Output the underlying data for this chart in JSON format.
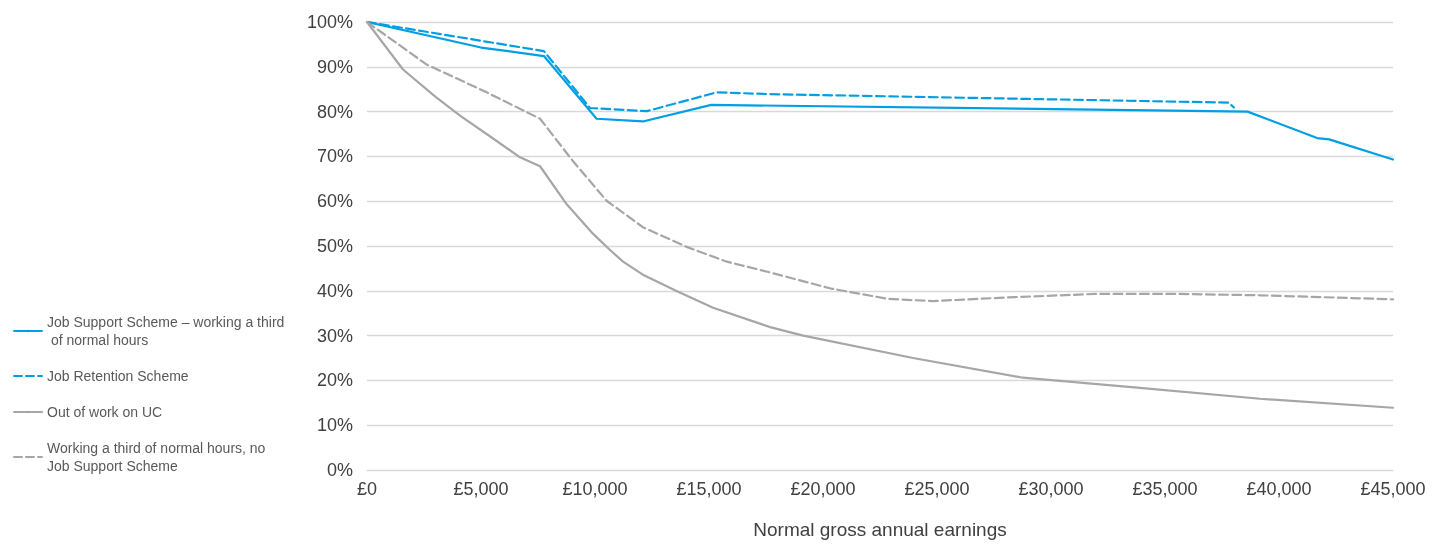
{
  "chart_data": {
    "type": "line",
    "xlabel": "Normal gross annual earnings",
    "xlim": [
      0,
      45000
    ],
    "xticks": [
      {
        "value": 0,
        "label": "£0"
      },
      {
        "value": 5000,
        "label": "£5,000"
      },
      {
        "value": 10000,
        "label": "£10,000"
      },
      {
        "value": 15000,
        "label": "£15,000"
      },
      {
        "value": 20000,
        "label": "£20,000"
      },
      {
        "value": 25000,
        "label": "£25,000"
      },
      {
        "value": 30000,
        "label": "£30,000"
      },
      {
        "value": 35000,
        "label": "£35,000"
      },
      {
        "value": 40000,
        "label": "£40,000"
      },
      {
        "value": 45000,
        "label": "£45,000"
      }
    ],
    "ylim": [
      0,
      100
    ],
    "yticks": [
      {
        "value": 0,
        "label": "0%"
      },
      {
        "value": 10,
        "label": "10%"
      },
      {
        "value": 20,
        "label": "20%"
      },
      {
        "value": 30,
        "label": "30%"
      },
      {
        "value": 40,
        "label": "40%"
      },
      {
        "value": 50,
        "label": "50%"
      },
      {
        "value": 60,
        "label": "60%"
      },
      {
        "value": 70,
        "label": "70%"
      },
      {
        "value": 80,
        "label": "80%"
      },
      {
        "value": 90,
        "label": "90%"
      },
      {
        "value": 100,
        "label": "100%"
      }
    ],
    "grid": "y",
    "legend": "left",
    "marker": "none",
    "series": [
      {
        "name": "Job Support Scheme – working a third of normal hours",
        "color": "#009fe3",
        "line_style": "solid",
        "x": [
          0,
          5000,
          7760,
          10070,
          12100,
          15100,
          38620,
          41670,
          42200,
          45000
        ],
        "values": [
          100,
          94.3,
          92.4,
          78.4,
          77.8,
          81.5,
          80.0,
          74.1,
          73.8,
          69.3
        ]
      },
      {
        "name": "Job Retention Scheme",
        "color": "#009fe3",
        "line_style": "dashed",
        "x": [
          0,
          7760,
          9780,
          12270,
          15340,
          17680,
          37800,
          38020
        ],
        "values": [
          100,
          93.5,
          80.8,
          80.1,
          84.3,
          83.9,
          82.0,
          80.9
        ]
      },
      {
        "name": "Out of work on UC",
        "color": "#a6a6a6",
        "line_style": "solid",
        "x": [
          0,
          1580,
          2980,
          4080,
          5530,
          6710,
          7590,
          8760,
          9920,
          10660,
          11230,
          12100,
          13600,
          15180,
          17680,
          19130,
          23950,
          28770,
          33780,
          39170,
          45000
        ],
        "values": [
          100,
          89.4,
          83.4,
          79.1,
          74.0,
          69.8,
          67.8,
          59.3,
          52.7,
          49.1,
          46.5,
          43.6,
          39.9,
          36.2,
          31.9,
          30.0,
          25.0,
          20.6,
          18.4,
          15.9,
          13.9
        ]
      },
      {
        "name": "Working a third of normal hours, no Job Support Scheme",
        "color": "#a6a6a6",
        "line_style": "dashed",
        "x": [
          0,
          2620,
          5250,
          7590,
          9040,
          10510,
          12100,
          14020,
          15780,
          17680,
          20350,
          22850,
          24820,
          28420,
          31970,
          35570,
          39170,
          45000
        ],
        "values": [
          100,
          90.5,
          84.3,
          78.4,
          68.9,
          60.1,
          54.2,
          49.8,
          46.5,
          44.1,
          40.5,
          38.2,
          37.7,
          38.6,
          39.3,
          39.3,
          39.0,
          38.1
        ]
      }
    ]
  }
}
